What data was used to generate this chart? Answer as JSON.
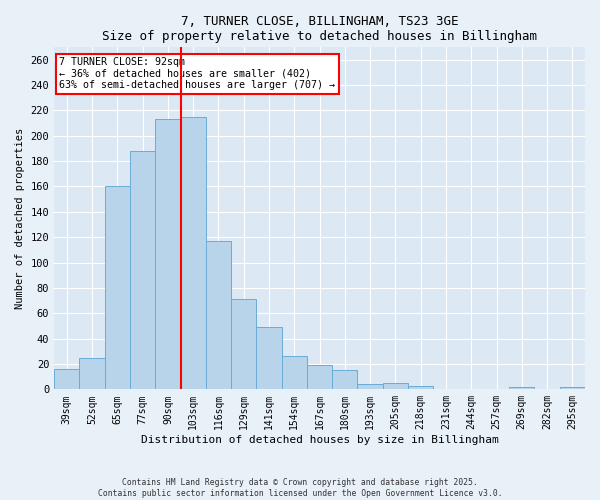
{
  "title_line1": "7, TURNER CLOSE, BILLINGHAM, TS23 3GE",
  "title_line2": "Size of property relative to detached houses in Billingham",
  "xlabel": "Distribution of detached houses by size in Billingham",
  "ylabel": "Number of detached properties",
  "categories": [
    "39sqm",
    "52sqm",
    "65sqm",
    "77sqm",
    "90sqm",
    "103sqm",
    "116sqm",
    "129sqm",
    "141sqm",
    "154sqm",
    "167sqm",
    "180sqm",
    "193sqm",
    "205sqm",
    "218sqm",
    "231sqm",
    "244sqm",
    "257sqm",
    "269sqm",
    "282sqm",
    "295sqm"
  ],
  "values": [
    16,
    25,
    160,
    188,
    213,
    215,
    117,
    71,
    49,
    26,
    19,
    15,
    4,
    5,
    3,
    0,
    0,
    0,
    2,
    0,
    2
  ],
  "bar_color": "#b8d4ea",
  "bar_edge_color": "#6aacd6",
  "annotation_text": "7 TURNER CLOSE: 92sqm\n← 36% of detached houses are smaller (402)\n63% of semi-detached houses are larger (707) →",
  "annotation_box_color": "white",
  "annotation_box_edge_color": "red",
  "property_line_color": "red",
  "ylim": [
    0,
    270
  ],
  "yticks": [
    0,
    20,
    40,
    60,
    80,
    100,
    120,
    140,
    160,
    180,
    200,
    220,
    240,
    260
  ],
  "footnote": "Contains HM Land Registry data © Crown copyright and database right 2025.\nContains public sector information licensed under the Open Government Licence v3.0.",
  "background_color": "#e8f0f8",
  "plot_background_color": "#dce9f5",
  "red_line_index": 4.5
}
